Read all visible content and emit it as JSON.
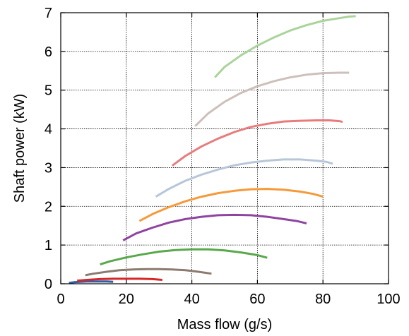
{
  "chart_data": {
    "type": "line",
    "title": "",
    "xlabel": "Mass flow (g/s)",
    "ylabel": "Shaft power (kW)",
    "xlim": [
      0,
      100
    ],
    "ylim": [
      0,
      7
    ],
    "x_ticks": [
      "0",
      "20",
      "40",
      "60",
      "80",
      "100"
    ],
    "y_ticks": [
      "0",
      "1",
      "2",
      "3",
      "4",
      "5",
      "6",
      "7"
    ],
    "grid": true,
    "legend": "none",
    "series": [
      {
        "color": "#2f5fa6",
        "x": [
          2.5,
          4,
          6,
          8,
          10,
          12,
          14,
          16
        ],
        "y": [
          0.02,
          0.04,
          0.05,
          0.06,
          0.06,
          0.06,
          0.06,
          0.05
        ]
      },
      {
        "color": "#d62728",
        "x": [
          5,
          8,
          12,
          16,
          20,
          24,
          28,
          31
        ],
        "y": [
          0.08,
          0.1,
          0.12,
          0.13,
          0.13,
          0.13,
          0.12,
          0.1
        ]
      },
      {
        "color": "#8c7a70",
        "x": [
          7.5,
          10,
          14,
          18,
          22,
          26,
          30,
          34,
          38,
          42,
          46
        ],
        "y": [
          0.22,
          0.26,
          0.31,
          0.35,
          0.37,
          0.38,
          0.38,
          0.37,
          0.35,
          0.31,
          0.26
        ]
      },
      {
        "color": "#59a84b",
        "x": [
          12,
          15,
          20,
          25,
          30,
          35,
          40,
          45,
          50,
          55,
          60,
          63
        ],
        "y": [
          0.5,
          0.58,
          0.68,
          0.76,
          0.83,
          0.87,
          0.89,
          0.89,
          0.86,
          0.81,
          0.74,
          0.67
        ]
      },
      {
        "color": "#8e44a0",
        "x": [
          19,
          23,
          28,
          33,
          38,
          43,
          48,
          53,
          58,
          63,
          68,
          72,
          75
        ],
        "y": [
          1.12,
          1.3,
          1.45,
          1.58,
          1.67,
          1.73,
          1.77,
          1.78,
          1.77,
          1.73,
          1.67,
          1.62,
          1.56
        ]
      },
      {
        "color": "#f59a3a",
        "x": [
          24,
          28,
          33,
          38,
          43,
          48,
          53,
          58,
          63,
          68,
          73,
          77,
          80
        ],
        "y": [
          1.62,
          1.8,
          1.98,
          2.13,
          2.25,
          2.34,
          2.4,
          2.44,
          2.45,
          2.43,
          2.38,
          2.32,
          2.25
        ]
      },
      {
        "color": "#b7c6d8",
        "x": [
          29,
          33,
          38,
          43,
          48,
          53,
          58,
          63,
          68,
          73,
          78,
          81,
          83
        ],
        "y": [
          2.25,
          2.45,
          2.66,
          2.82,
          2.95,
          3.06,
          3.13,
          3.18,
          3.21,
          3.21,
          3.18,
          3.15,
          3.1
        ]
      },
      {
        "color": "#e77c7c",
        "x": [
          34,
          38,
          43,
          48,
          53,
          58,
          63,
          68,
          73,
          78,
          82,
          85,
          86
        ],
        "y": [
          3.05,
          3.3,
          3.55,
          3.75,
          3.92,
          4.05,
          4.13,
          4.19,
          4.21,
          4.22,
          4.22,
          4.2,
          4.18
        ]
      },
      {
        "color": "#cdbfbb",
        "x": [
          41,
          45,
          50,
          55,
          60,
          65,
          70,
          75,
          80,
          85,
          88
        ],
        "y": [
          4.07,
          4.4,
          4.7,
          4.93,
          5.1,
          5.23,
          5.33,
          5.4,
          5.44,
          5.45,
          5.45
        ]
      },
      {
        "color": "#a9d49a",
        "x": [
          47,
          50,
          55,
          60,
          65,
          70,
          75,
          80,
          85,
          88,
          90
        ],
        "y": [
          5.33,
          5.6,
          5.9,
          6.15,
          6.36,
          6.54,
          6.68,
          6.79,
          6.86,
          6.9,
          6.91
        ]
      }
    ]
  }
}
